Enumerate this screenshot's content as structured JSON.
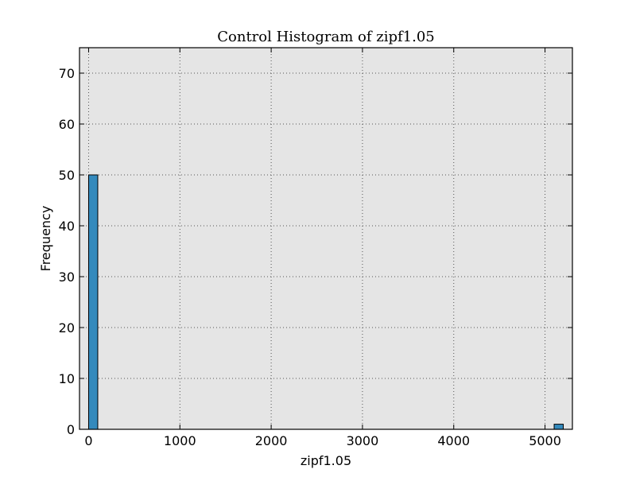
{
  "chart_data": {
    "type": "bar",
    "title": "Control Histogram of zipf1.05",
    "xlabel": "zipf1.05",
    "ylabel": "Frequency",
    "xlim": [
      -100,
      5300
    ],
    "ylim": [
      0,
      75
    ],
    "x_ticks": [
      0,
      1000,
      2000,
      3000,
      4000,
      5000
    ],
    "y_ticks": [
      0,
      10,
      20,
      30,
      40,
      50,
      60,
      70
    ],
    "bins": [
      {
        "x_start": 0,
        "x_end": 100,
        "value": 50
      },
      {
        "x_start": 5100,
        "x_end": 5200,
        "value": 1
      }
    ],
    "grid": true,
    "legend": "none",
    "colors": {
      "bar": "#348abd",
      "plot_background": "#e5e5e5",
      "grid": "#555555"
    }
  }
}
